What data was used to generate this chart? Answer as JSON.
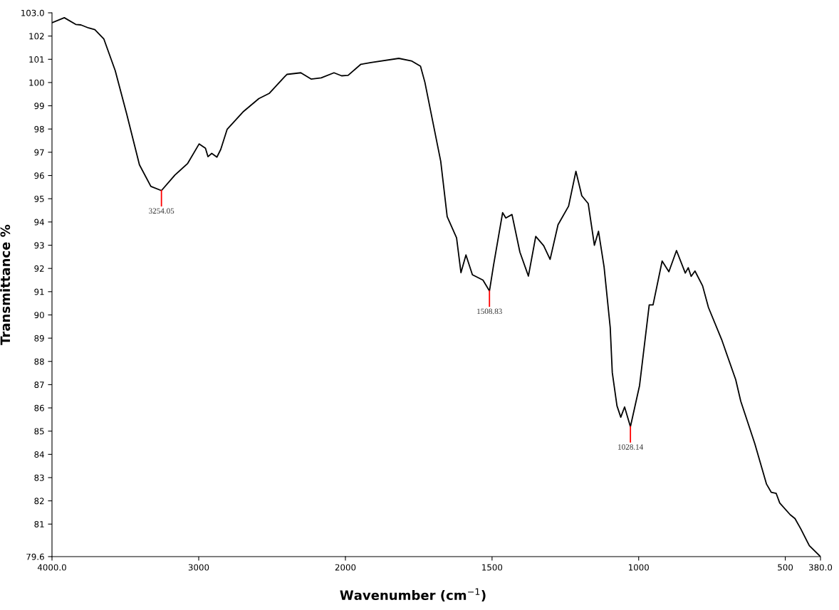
{
  "chart_data": [
    {
      "type": "line",
      "ylabel": "Transmittance %",
      "xlim": [
        4000,
        2000
      ],
      "ylim": [
        79.6,
        103.0
      ],
      "xticks": [
        {
          "value": 4000,
          "label": "4000.0"
        },
        3000
      ],
      "yticks": [
        {
          "value": 79.6,
          "label": "79.6"
        },
        81,
        82,
        83,
        84,
        85,
        86,
        87,
        88,
        89,
        90,
        91,
        92,
        93,
        94,
        95,
        96,
        97,
        98,
        99,
        100,
        101,
        102,
        {
          "value": 103.0,
          "label": "103.0"
        }
      ],
      "grid": false,
      "marker": "none",
      "line_style": "solid",
      "series": [
        {
          "color": "#000000",
          "x": [
            4000,
            3916,
            3838,
            3803,
            3751,
            3708,
            3647,
            3569,
            3491,
            3404,
            3326,
            3254.05,
            3162,
            3075,
            2997,
            2954,
            2937,
            2911,
            2876,
            2850,
            2806,
            2694,
            2590,
            2520,
            2416,
            2399,
            2304,
            2234,
            2165,
            2078,
            2026,
            2000
          ],
          "values": [
            102.57,
            102.79,
            102.5,
            102.48,
            102.35,
            102.28,
            101.88,
            100.51,
            98.65,
            96.46,
            95.53,
            95.35,
            96.02,
            96.52,
            97.36,
            97.17,
            96.81,
            96.95,
            96.79,
            97.12,
            97.99,
            98.76,
            99.31,
            99.53,
            100.24,
            100.35,
            100.42,
            100.15,
            100.2,
            100.42,
            100.29,
            100.3
          ]
        }
      ],
      "annotations": [
        {
          "text": "3254.05",
          "x": 3254.05,
          "y": 95.35
        }
      ]
    },
    {
      "type": "line",
      "xlabel": "Wavenumber (cm$^{−1}$)",
      "xlim": [
        2000,
        380
      ],
      "ylim": [
        79.6,
        103.0
      ],
      "tick_labels": "x",
      "xticks": [
        2000,
        1500,
        1000,
        500,
        {
          "value": 380,
          "label": "380.0"
        }
      ],
      "grid": false,
      "marker": "none",
      "line_style": "solid",
      "series": [
        {
          "color": "#000000",
          "x": [
            2000,
            1991,
            1948,
            1913,
            1818,
            1775,
            1744,
            1729,
            1702,
            1675,
            1653,
            1621,
            1606,
            1589,
            1567,
            1531,
            1508.83,
            1495,
            1464,
            1453,
            1432,
            1405,
            1376,
            1351,
            1324,
            1302,
            1275,
            1239,
            1214,
            1194,
            1172,
            1151,
            1137,
            1118,
            1097,
            1090,
            1074,
            1061,
            1048,
            1028.14,
            997,
            964,
            951,
            920,
            897,
            871,
            841,
            831,
            821,
            808,
            782,
            762,
            717,
            669,
            652,
            604,
            564,
            548,
            531,
            519,
            483,
            467,
            447,
            418,
            380
          ],
          "values": [
            100.3,
            100.31,
            100.78,
            100.86,
            101.04,
            100.93,
            100.7,
            100.01,
            98.31,
            96.61,
            94.23,
            93.32,
            91.82,
            92.58,
            91.73,
            91.5,
            91.03,
            92.13,
            94.4,
            94.17,
            94.32,
            92.7,
            91.67,
            93.38,
            92.98,
            92.39,
            93.88,
            94.68,
            96.18,
            95.13,
            94.79,
            93.0,
            93.6,
            92.07,
            89.46,
            87.52,
            86.09,
            85.6,
            86.04,
            85.19,
            86.96,
            90.43,
            90.43,
            92.32,
            91.86,
            92.77,
            91.8,
            92.03,
            91.66,
            91.89,
            91.25,
            90.32,
            88.94,
            87.21,
            86.29,
            84.46,
            82.72,
            82.37,
            82.32,
            81.91,
            81.4,
            81.24,
            80.79,
            80.07,
            79.6
          ]
        }
      ],
      "annotations": [
        {
          "text": "1508.83",
          "x": 1508.83,
          "y": 91.03
        },
        {
          "text": "1028.14",
          "x": 1028.14,
          "y": 85.19
        }
      ]
    }
  ]
}
